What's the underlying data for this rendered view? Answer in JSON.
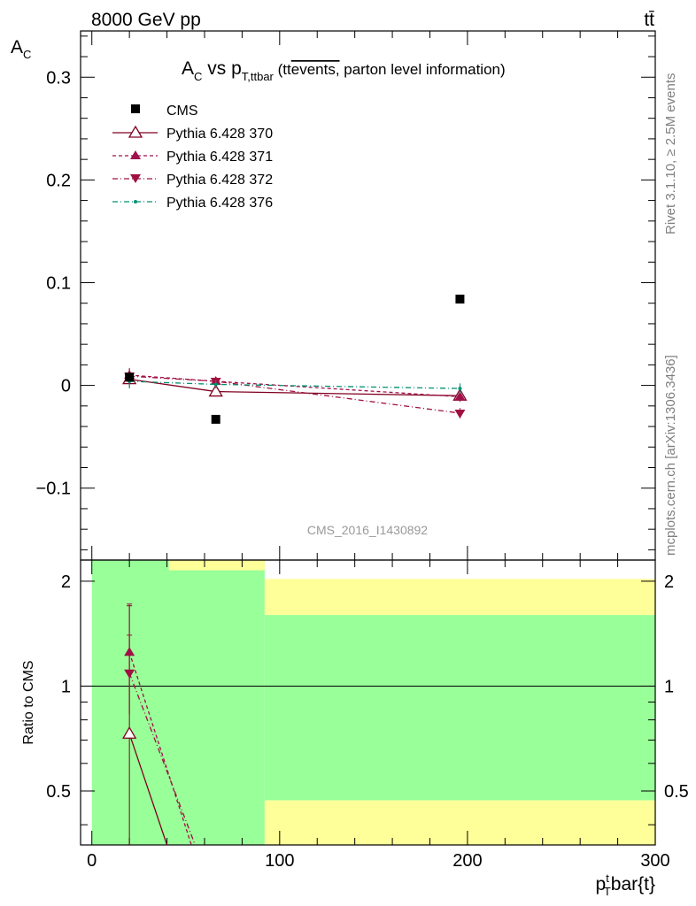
{
  "header": {
    "energy_label": "8000 GeV pp",
    "process_label": "tt̄"
  },
  "side_labels": {
    "rivet": "Rivet 3.1.10, ≥ 2.5M events",
    "mcplots": "mcplots.cern.ch [arXiv:1306.3436]"
  },
  "colors": {
    "cms": "#000000",
    "p370": "#800020",
    "p371": "#a0104a",
    "p372": "#a01040",
    "p376": "#009070",
    "band_green": "#99ff99",
    "band_yellow": "#ffff99"
  },
  "chart_data": [
    {
      "type": "scatter",
      "title": "A_C vs p_T,ttbar (tt̄ events, parton level information)",
      "title_main": "A",
      "title_sub_c": "C",
      "title_vs": " vs p",
      "title_sub_t": "T,ttbar",
      "title_paren_open": " (tt",
      "title_overline": "events,",
      "title_paren_rest": " parton level information)",
      "ylabel": "A",
      "ylabel_sub": "C",
      "analysis_label": "CMS_2016_I1430892",
      "xlim": [
        -6,
        300
      ],
      "ylim": [
        -0.17,
        0.345
      ],
      "yticks": [
        -0.1,
        0,
        0.1,
        0.2,
        0.3
      ],
      "ytick_labels": [
        "−0.1",
        "0",
        "0.1",
        "0.2",
        "0.3"
      ],
      "legend_position": "top-left",
      "series": [
        {
          "name": "CMS",
          "marker": "square",
          "x": [
            20,
            66,
            196
          ],
          "y": [
            0.008,
            -0.033,
            0.084
          ]
        },
        {
          "name": "Pythia 6.428 370",
          "marker": "open-triangle-up",
          "line": "solid",
          "x": [
            20,
            66,
            196
          ],
          "y": [
            0.006,
            -0.006,
            -0.01
          ],
          "err": [
            0.008,
            0.004,
            0.005
          ]
        },
        {
          "name": "Pythia 6.428 371",
          "marker": "triangle-up",
          "line": "dashed",
          "x": [
            20,
            66,
            196
          ],
          "y": [
            0.01,
            0.004,
            -0.011
          ],
          "err": [
            0.007,
            0.004,
            0.005
          ]
        },
        {
          "name": "Pythia 6.428 372",
          "marker": "triangle-down",
          "line": "dashdot",
          "x": [
            20,
            66,
            196
          ],
          "y": [
            0.009,
            0.004,
            -0.027
          ],
          "err": [
            0.007,
            0.004,
            0.005
          ]
        },
        {
          "name": "Pythia 6.428 376",
          "marker": "dot",
          "line": "dashdotted",
          "x": [
            20,
            66,
            196
          ],
          "y": [
            0.004,
            0.001,
            -0.003
          ],
          "err": [
            0.007,
            0.004,
            0.005
          ]
        }
      ]
    },
    {
      "type": "line",
      "ylabel": "Ratio to CMS",
      "xlabel": "p_T^t bar{t}",
      "xlabel_main": "p",
      "xlabel_sup": "t",
      "xlabel_sub": "T",
      "xlabel_rest": "bar{t}",
      "xlim": [
        -6,
        300
      ],
      "ylim": [
        0.35,
        2.3
      ],
      "log_y": true,
      "xticks": [
        0,
        100,
        200,
        300
      ],
      "yticks": [
        0.5,
        1,
        2
      ],
      "ytick_labels": [
        "0.5",
        "1",
        "2"
      ],
      "reference_line": 1,
      "bands": {
        "green": [
          {
            "x": [
              0,
              92
            ],
            "y": [
              0.35,
              2.3
            ]
          },
          {
            "x": [
              92,
              300
            ],
            "y": [
              0.47,
              1.6
            ]
          }
        ],
        "yellow": [
          {
            "x": [
              41,
              92
            ],
            "y": [
              2.15,
              2.3
            ]
          },
          {
            "x": [
              92,
              300
            ],
            "y": [
              1.6,
              2.03
            ]
          },
          {
            "x": [
              92,
              300
            ],
            "y": [
              0.35,
              0.47
            ]
          }
        ]
      },
      "series": [
        {
          "name": "Pythia 6.428 370",
          "x": [
            20,
            40
          ],
          "y": [
            0.73,
            0.35
          ],
          "err_low": [
            0.35
          ],
          "err_high": [
            1.7
          ]
        },
        {
          "name": "Pythia 6.428 371",
          "x": [
            20,
            53
          ],
          "y": [
            1.25,
            0.35
          ],
          "err_low": [
            0.83
          ],
          "err_high": [
            1.72
          ]
        },
        {
          "name": "Pythia 6.428 372",
          "x": [
            20,
            55
          ],
          "y": [
            1.09,
            0.35
          ],
          "err_low": [
            0.83
          ],
          "err_high": [
            1.4
          ]
        }
      ]
    }
  ]
}
